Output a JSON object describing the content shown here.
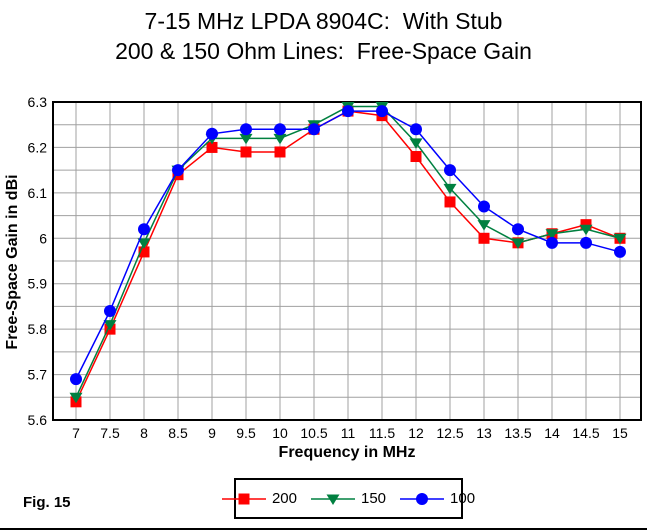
{
  "title": {
    "line1": "7-15 MHz LPDA 8904C:  With Stub",
    "line2": "200 & 150 Ohm Lines:  Free-Space Gain"
  },
  "fig_caption": "Fig. 15",
  "chart_data": {
    "type": "line",
    "title": "7-15 MHz LPDA 8904C: With Stub — 200 & 150 Ohm Lines: Free-Space Gain",
    "xlabel": "Frequency in MHz",
    "ylabel": "Free-Space Gain in dBi",
    "x": [
      7,
      7.5,
      8,
      8.5,
      9,
      9.5,
      10,
      10.5,
      11,
      11.5,
      12,
      12.5,
      13,
      13.5,
      14,
      14.5,
      15
    ],
    "xtick_labels": [
      "7",
      "7.5",
      "8",
      "8.5",
      "9",
      "9.5",
      "10",
      "10.5",
      "11",
      "11.5",
      "12",
      "12.5",
      "13",
      "13.5",
      "14",
      "14.5",
      "15"
    ],
    "ytick_labels": [
      "6.3",
      "6.2",
      "6.1",
      "6",
      "5.9",
      "5.8",
      "5.7",
      "5.6"
    ],
    "ylim": [
      5.6,
      6.3
    ],
    "xlim": [
      7,
      15
    ],
    "minor_grid_step": 0.05,
    "grid": true,
    "legend_position": "bottom",
    "series": [
      {
        "name": "200",
        "color": "#ff0000",
        "marker": "square",
        "values": [
          5.64,
          5.8,
          5.97,
          6.14,
          6.2,
          6.19,
          6.19,
          6.24,
          6.28,
          6.27,
          6.18,
          6.08,
          6.0,
          5.99,
          6.01,
          6.03,
          6.0
        ]
      },
      {
        "name": "150",
        "color": "#008040",
        "marker": "triangle-down",
        "values": [
          5.65,
          5.81,
          5.99,
          6.15,
          6.22,
          6.22,
          6.22,
          6.25,
          6.29,
          6.29,
          6.21,
          6.11,
          6.03,
          5.99,
          6.01,
          6.02,
          6.0
        ]
      },
      {
        "name": "100",
        "color": "#0000ff",
        "marker": "circle",
        "values": [
          5.69,
          5.84,
          6.02,
          6.15,
          6.23,
          6.24,
          6.24,
          6.24,
          6.28,
          6.28,
          6.24,
          6.15,
          6.07,
          6.02,
          5.99,
          5.99,
          5.97
        ]
      }
    ],
    "colors": {
      "grid": "#a0a0a0",
      "axis": "#000000",
      "background": "#ffffff"
    }
  }
}
